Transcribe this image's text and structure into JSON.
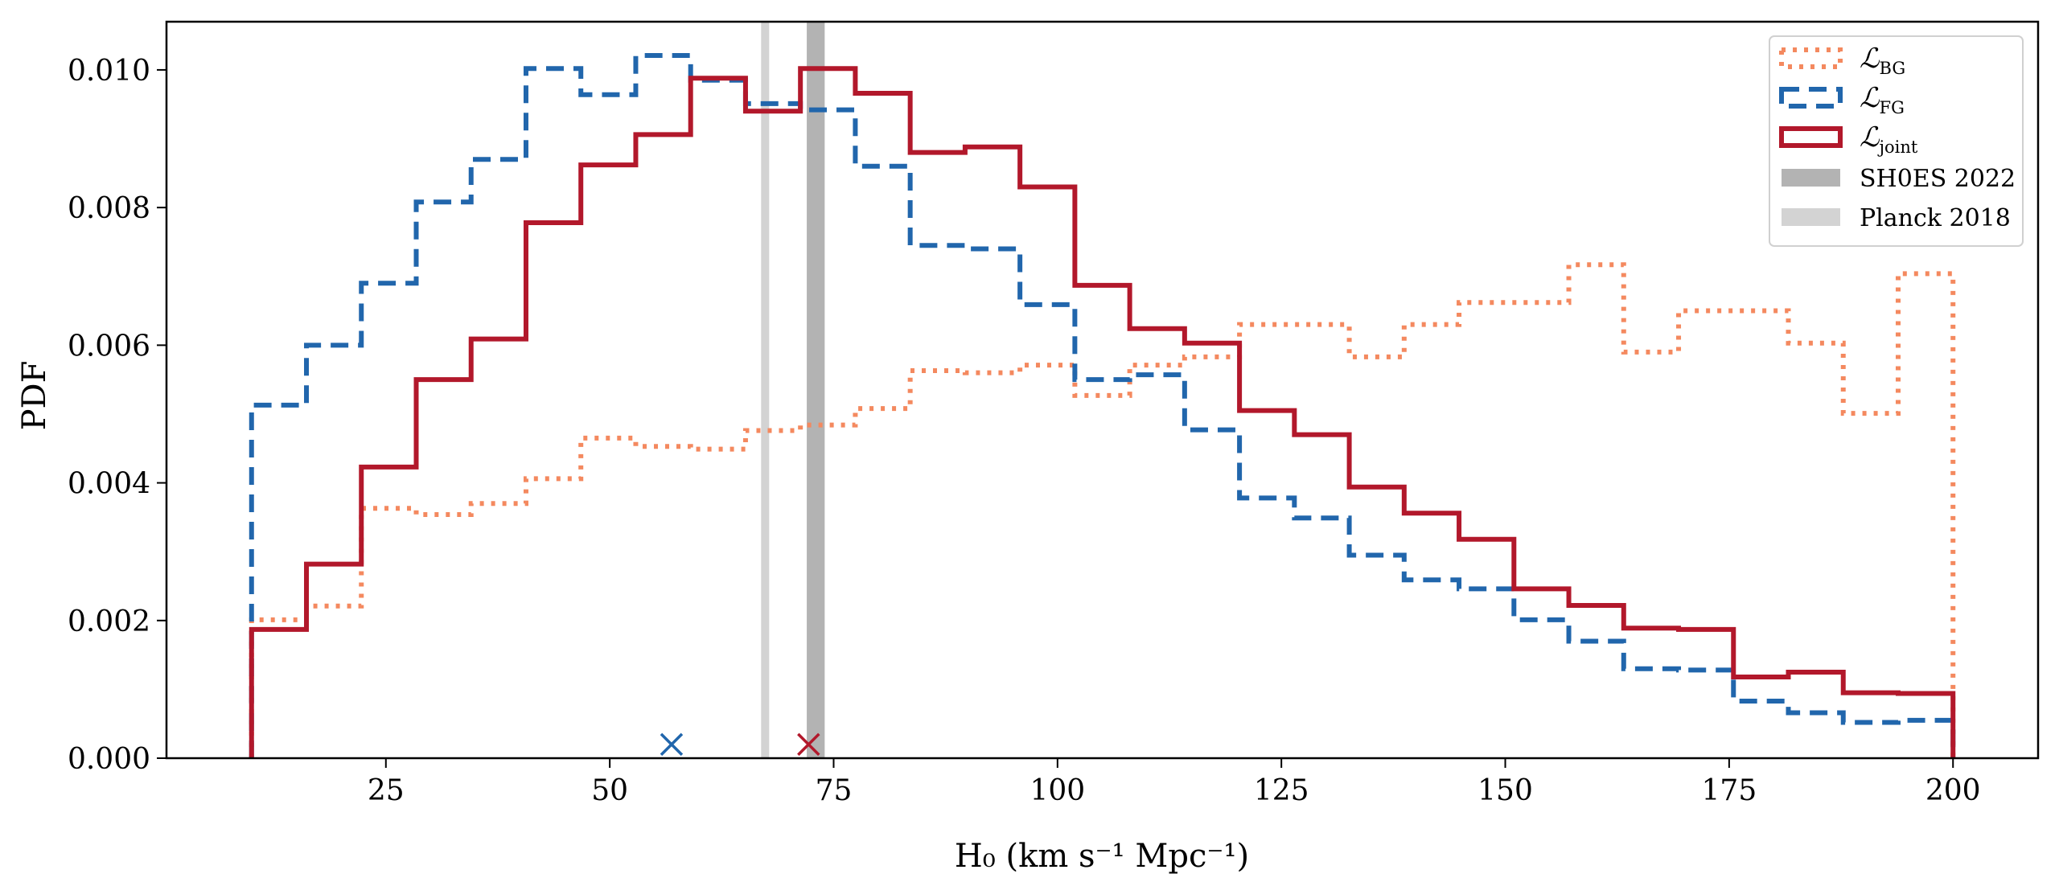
{
  "chart_data": {
    "type": "histogram-step",
    "xlabel": "H₀ (km s⁻¹ Mpc⁻¹)",
    "ylabel": "PDF",
    "xlim": [
      0.5,
      209.5
    ],
    "ylim": [
      0,
      0.0107
    ],
    "xticks": [
      25,
      50,
      75,
      100,
      125,
      150,
      175,
      200
    ],
    "yticks": [
      "0.000",
      "0.002",
      "0.004",
      "0.006",
      "0.008",
      "0.010"
    ],
    "grid": false,
    "legend_placement": "top-right",
    "bin_range": [
      10,
      200
    ],
    "series": [
      {
        "name": "ℒ_BG",
        "style": "dotted",
        "color": "#f4895f",
        "values": [
          0.00201,
          0.00221,
          0.00363,
          0.00354,
          0.0037,
          0.00406,
          0.00465,
          0.00453,
          0.00449,
          0.00476,
          0.00484,
          0.00508,
          0.00563,
          0.0056,
          0.00571,
          0.00527,
          0.00571,
          0.00583,
          0.0063,
          0.0063,
          0.00583,
          0.0063,
          0.00662,
          0.00662,
          0.00717,
          0.0059,
          0.0065,
          0.0065,
          0.00603,
          0.00501,
          0.00704
        ]
      },
      {
        "name": "ℒ_FG",
        "style": "dashed",
        "color": "#2166ac",
        "values": [
          0.00513,
          0.006,
          0.0069,
          0.00808,
          0.0087,
          0.01002,
          0.00964,
          0.01021,
          0.00985,
          0.00951,
          0.00942,
          0.0086,
          0.00745,
          0.0074,
          0.00659,
          0.0055,
          0.00557,
          0.00477,
          0.00378,
          0.00349,
          0.00295,
          0.00259,
          0.00246,
          0.00201,
          0.0017,
          0.0013,
          0.00128,
          0.00083,
          0.00066,
          0.00052,
          0.00055
        ]
      },
      {
        "name": "ℒ_joint",
        "style": "solid",
        "color": "#b2182b",
        "values": [
          0.00187,
          0.00282,
          0.00423,
          0.0055,
          0.00609,
          0.00778,
          0.00862,
          0.00906,
          0.00988,
          0.0094,
          0.01002,
          0.00966,
          0.0088,
          0.00888,
          0.0083,
          0.00687,
          0.00624,
          0.00603,
          0.00505,
          0.0047,
          0.00394,
          0.00356,
          0.00318,
          0.00246,
          0.00222,
          0.00189,
          0.00187,
          0.00118,
          0.00125,
          0.00095,
          0.00094
        ]
      }
    ],
    "bands": [
      {
        "name": "SH0ES 2022",
        "range": [
          72.0,
          74.0
        ],
        "color": "#b3b3b3"
      },
      {
        "name": "Planck 2018",
        "range": [
          66.9,
          67.8
        ],
        "color": "#d3d3d3"
      }
    ],
    "markers": [
      {
        "x": 56.9,
        "y": 0.0002,
        "symbol": "x",
        "color": "#2166ac"
      },
      {
        "x": 72.2,
        "y": 0.0002,
        "symbol": "x",
        "color": "#b2182b"
      }
    ]
  }
}
